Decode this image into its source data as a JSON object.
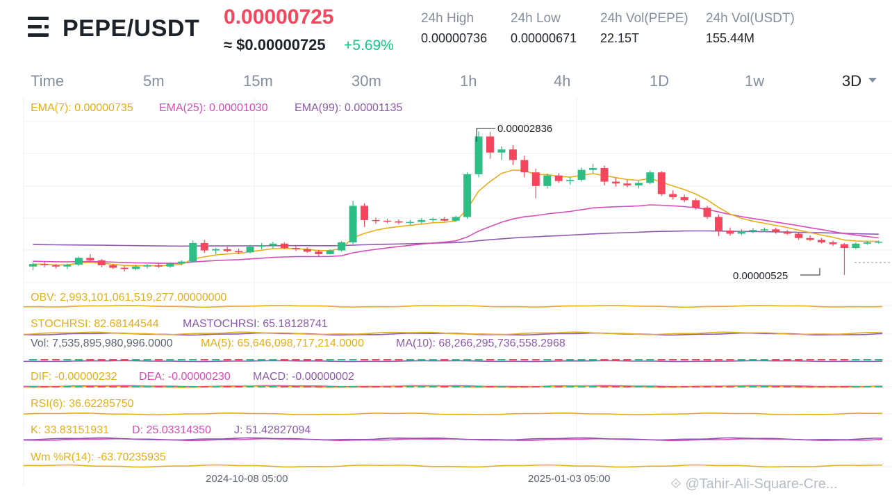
{
  "header": {
    "pair": "PEPE/USDT",
    "last_price": "0.00000725",
    "usd_price": "≈ $0.00000725",
    "change_pct": "+5.69%",
    "stats": [
      {
        "label": "24h High",
        "value": "0.00000736"
      },
      {
        "label": "24h Low",
        "value": "0.00000671"
      },
      {
        "label": "24h Vol(PEPE)",
        "value": "22.15T"
      },
      {
        "label": "24h Vol(USDT)",
        "value": "155.44M"
      }
    ]
  },
  "tabs": [
    "Time",
    "5m",
    "15m",
    "30m",
    "1h",
    "4h",
    "1D",
    "1w",
    "3D"
  ],
  "active_tab": "3D",
  "indicators": {
    "ema7": "EMA(7): 0.00000735",
    "ema25": "EMA(25): 0.00001030",
    "ema99": "EMA(99): 0.00001135",
    "obv": "OBV: 2,993,101,061,519,277.00000000",
    "stochrsi": "STOCHRSI: 82.68144544",
    "mastochrsi": "MASTOCHRSI: 65.18128741",
    "vol": "Vol: 7,535,895,980,996.0000",
    "ma5": "MA(5): 65,646,098,717,214.0000",
    "ma10": "MA(10): 68,266,295,736,558.2968",
    "dif": "DIF: -0.00000232",
    "dea": "DEA: -0.00000230",
    "macd": "MACD: -0.00000002",
    "rsi": "RSI(6): 36.62285750",
    "k": "K: 33.83151931",
    "d": "D: 25.03314350",
    "j": "J: 51.42827094",
    "wr": "Wm %R(14): -63.70235935"
  },
  "chart_data": {
    "type": "candlestick",
    "high_label": "0.00002836",
    "low_label": "0.00000525",
    "x_ticks": [
      "2024-10-08 05:00",
      "2025-01-03 05:00"
    ],
    "candles": [
      {
        "o": 6.6,
        "h": 7.3,
        "l": 6.0,
        "c": 7.0
      },
      {
        "o": 7.0,
        "h": 7.4,
        "l": 6.5,
        "c": 6.8
      },
      {
        "o": 6.8,
        "h": 7.0,
        "l": 6.3,
        "c": 6.6
      },
      {
        "o": 6.6,
        "h": 7.1,
        "l": 6.2,
        "c": 6.9
      },
      {
        "o": 6.9,
        "h": 8.2,
        "l": 6.7,
        "c": 8.0
      },
      {
        "o": 8.0,
        "h": 8.6,
        "l": 7.3,
        "c": 7.6
      },
      {
        "o": 7.6,
        "h": 7.8,
        "l": 6.5,
        "c": 6.8
      },
      {
        "o": 6.8,
        "h": 7.0,
        "l": 6.2,
        "c": 6.4
      },
      {
        "o": 6.4,
        "h": 6.7,
        "l": 5.8,
        "c": 6.2
      },
      {
        "o": 6.2,
        "h": 6.9,
        "l": 6.0,
        "c": 6.6
      },
      {
        "o": 6.6,
        "h": 7.0,
        "l": 6.3,
        "c": 6.8
      },
      {
        "o": 6.8,
        "h": 7.1,
        "l": 6.4,
        "c": 6.6
      },
      {
        "o": 6.6,
        "h": 7.3,
        "l": 6.4,
        "c": 7.1
      },
      {
        "o": 7.1,
        "h": 7.6,
        "l": 6.8,
        "c": 7.4
      },
      {
        "o": 7.4,
        "h": 10.8,
        "l": 7.2,
        "c": 10.4
      },
      {
        "o": 10.4,
        "h": 10.9,
        "l": 8.8,
        "c": 9.2
      },
      {
        "o": 9.2,
        "h": 9.6,
        "l": 8.6,
        "c": 9.4
      },
      {
        "o": 9.4,
        "h": 9.8,
        "l": 8.9,
        "c": 9.1
      },
      {
        "o": 9.1,
        "h": 9.5,
        "l": 8.6,
        "c": 8.9
      },
      {
        "o": 8.9,
        "h": 10.1,
        "l": 8.7,
        "c": 9.8
      },
      {
        "o": 9.8,
        "h": 10.4,
        "l": 9.4,
        "c": 10.0
      },
      {
        "o": 10.0,
        "h": 10.6,
        "l": 9.5,
        "c": 10.3
      },
      {
        "o": 10.3,
        "h": 10.5,
        "l": 9.4,
        "c": 9.6
      },
      {
        "o": 9.6,
        "h": 10.0,
        "l": 9.1,
        "c": 9.4
      },
      {
        "o": 9.4,
        "h": 9.7,
        "l": 8.8,
        "c": 9.0
      },
      {
        "o": 9.0,
        "h": 9.3,
        "l": 8.3,
        "c": 8.6
      },
      {
        "o": 8.6,
        "h": 9.4,
        "l": 8.5,
        "c": 9.2
      },
      {
        "o": 9.2,
        "h": 10.7,
        "l": 9.0,
        "c": 10.5
      },
      {
        "o": 10.5,
        "h": 17.2,
        "l": 10.2,
        "c": 16.4
      },
      {
        "o": 16.4,
        "h": 16.8,
        "l": 13.0,
        "c": 14.1
      },
      {
        "o": 14.1,
        "h": 14.5,
        "l": 13.5,
        "c": 14.0
      },
      {
        "o": 14.0,
        "h": 14.3,
        "l": 13.6,
        "c": 13.9
      },
      {
        "o": 13.9,
        "h": 14.2,
        "l": 13.4,
        "c": 13.7
      },
      {
        "o": 13.7,
        "h": 14.1,
        "l": 13.3,
        "c": 13.8
      },
      {
        "o": 13.8,
        "h": 14.4,
        "l": 13.5,
        "c": 14.1
      },
      {
        "o": 14.1,
        "h": 14.5,
        "l": 13.8,
        "c": 14.3
      },
      {
        "o": 14.3,
        "h": 14.6,
        "l": 13.9,
        "c": 14.0
      },
      {
        "o": 14.0,
        "h": 14.8,
        "l": 13.8,
        "c": 14.6
      },
      {
        "o": 14.6,
        "h": 21.8,
        "l": 14.3,
        "c": 21.5
      },
      {
        "o": 21.5,
        "h": 28.4,
        "l": 21.0,
        "c": 27.6
      },
      {
        "o": 27.6,
        "h": 28.36,
        "l": 24.0,
        "c": 25.0
      },
      {
        "o": 25.0,
        "h": 26.0,
        "l": 23.8,
        "c": 25.5
      },
      {
        "o": 25.5,
        "h": 26.2,
        "l": 23.0,
        "c": 23.8
      },
      {
        "o": 23.8,
        "h": 24.5,
        "l": 21.0,
        "c": 21.8
      },
      {
        "o": 21.8,
        "h": 22.4,
        "l": 17.6,
        "c": 19.6
      },
      {
        "o": 19.6,
        "h": 21.6,
        "l": 19.2,
        "c": 21.3
      },
      {
        "o": 21.3,
        "h": 21.7,
        "l": 20.1,
        "c": 20.4
      },
      {
        "o": 20.4,
        "h": 21.0,
        "l": 19.8,
        "c": 20.6
      },
      {
        "o": 20.6,
        "h": 22.6,
        "l": 20.3,
        "c": 22.2
      },
      {
        "o": 22.2,
        "h": 23.2,
        "l": 21.7,
        "c": 22.5
      },
      {
        "o": 22.5,
        "h": 22.9,
        "l": 19.7,
        "c": 20.3
      },
      {
        "o": 20.3,
        "h": 20.9,
        "l": 19.5,
        "c": 20.0
      },
      {
        "o": 20.0,
        "h": 20.6,
        "l": 19.4,
        "c": 19.7
      },
      {
        "o": 19.7,
        "h": 20.4,
        "l": 19.2,
        "c": 20.1
      },
      {
        "o": 20.1,
        "h": 22.1,
        "l": 19.9,
        "c": 21.8
      },
      {
        "o": 21.8,
        "h": 22.0,
        "l": 18.0,
        "c": 18.3
      },
      {
        "o": 18.3,
        "h": 18.9,
        "l": 17.4,
        "c": 17.8
      },
      {
        "o": 17.8,
        "h": 18.2,
        "l": 17.0,
        "c": 17.3
      },
      {
        "o": 17.3,
        "h": 17.6,
        "l": 15.8,
        "c": 16.1
      },
      {
        "o": 16.1,
        "h": 16.4,
        "l": 14.3,
        "c": 14.6
      },
      {
        "o": 14.6,
        "h": 15.0,
        "l": 11.5,
        "c": 12.4
      },
      {
        "o": 12.4,
        "h": 12.9,
        "l": 11.6,
        "c": 11.9
      },
      {
        "o": 11.9,
        "h": 12.6,
        "l": 11.7,
        "c": 12.3
      },
      {
        "o": 12.3,
        "h": 12.8,
        "l": 12.0,
        "c": 12.5
      },
      {
        "o": 12.5,
        "h": 12.9,
        "l": 12.2,
        "c": 12.6
      },
      {
        "o": 12.6,
        "h": 12.9,
        "l": 11.9,
        "c": 12.2
      },
      {
        "o": 12.2,
        "h": 12.5,
        "l": 11.7,
        "c": 11.9
      },
      {
        "o": 11.9,
        "h": 12.2,
        "l": 10.9,
        "c": 11.2
      },
      {
        "o": 11.2,
        "h": 11.6,
        "l": 10.7,
        "c": 10.9
      },
      {
        "o": 10.9,
        "h": 11.2,
        "l": 10.3,
        "c": 10.5
      },
      {
        "o": 10.5,
        "h": 10.8,
        "l": 9.9,
        "c": 10.2
      },
      {
        "o": 10.2,
        "h": 10.4,
        "l": 5.25,
        "c": 9.6
      },
      {
        "o": 9.6,
        "h": 10.5,
        "l": 9.4,
        "c": 10.3
      },
      {
        "o": 10.3,
        "h": 10.7,
        "l": 10.1,
        "c": 10.5
      },
      {
        "o": 10.5,
        "h": 10.8,
        "l": 10.3,
        "c": 10.6
      }
    ]
  }
}
